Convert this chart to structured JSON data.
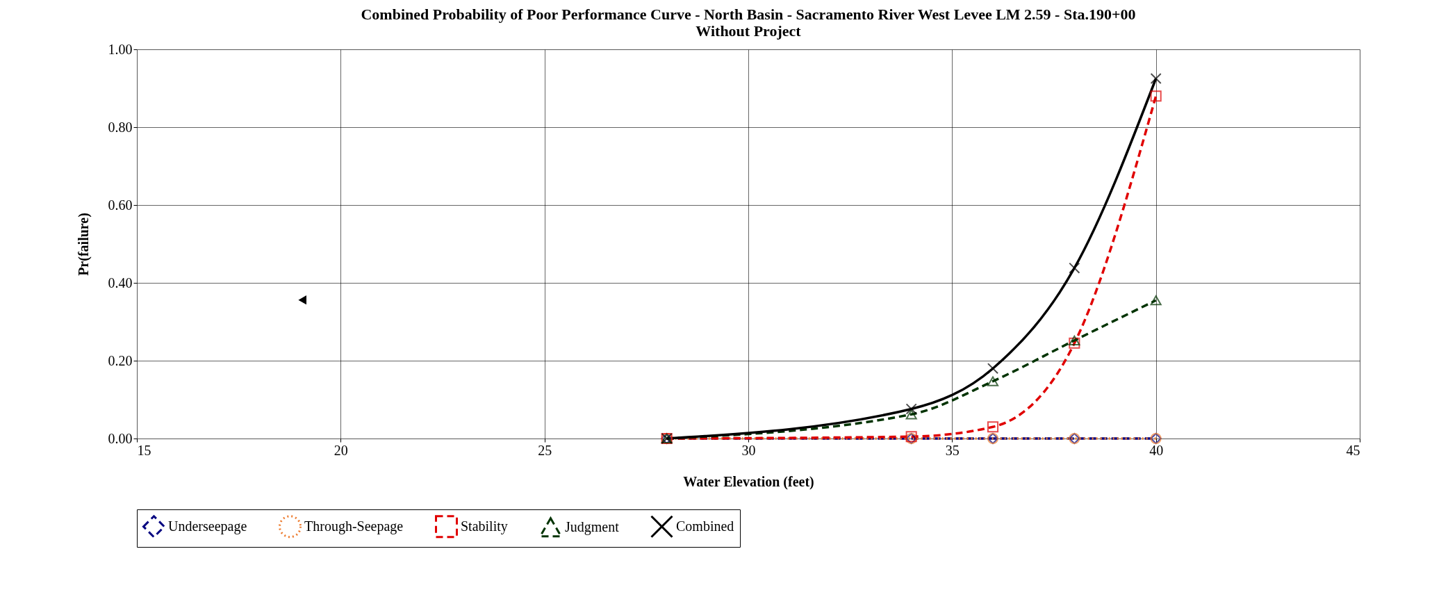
{
  "chart_data": {
    "type": "line",
    "title": "Combined Probability of Poor Performance Curve - North Basin - Sacramento River West Levee LM 2.59 - Sta.190+00",
    "subtitle": "Without Project",
    "xlabel": "Water Elevation (feet)",
    "ylabel": "Pr(failure)",
    "xlim": [
      15,
      45
    ],
    "xticks": [
      15,
      20,
      25,
      30,
      35,
      40,
      45
    ],
    "ylim": [
      0,
      1
    ],
    "yticks": [
      {
        "value": 0,
        "label": "0.00"
      },
      {
        "value": 0.2,
        "label": "0.20"
      },
      {
        "value": 0.4,
        "label": "0.40"
      },
      {
        "value": 0.6,
        "label": "0.60"
      },
      {
        "value": 0.8,
        "label": "0.80"
      },
      {
        "value": 1,
        "label": "1.00"
      }
    ],
    "grid": true,
    "legend": "bottom",
    "series": [
      {
        "name": "Underseepage",
        "color": "#000080",
        "marker": "diamond",
        "line_style": "dashed",
        "x": [
          28,
          34,
          36,
          38,
          40
        ],
        "values": [
          0,
          0,
          0,
          0,
          0
        ]
      },
      {
        "name": "Through-Seepage",
        "color": "#ed7d31",
        "marker": "circle",
        "line_style": "dotted",
        "x": [
          28,
          34,
          36,
          38,
          40
        ],
        "values": [
          0,
          0,
          0,
          0,
          0
        ]
      },
      {
        "name": "Stability",
        "color": "#e00000",
        "marker": "square",
        "line_style": "dashed",
        "x": [
          28,
          34,
          36,
          38,
          40
        ],
        "values": [
          0,
          0.005,
          0.03,
          0.245,
          0.88
        ]
      },
      {
        "name": "Judgment",
        "color": "#003300",
        "marker": "triangle",
        "line_style": "dashed",
        "x": [
          28,
          34,
          36,
          38,
          40
        ],
        "values": [
          0,
          0.062,
          0.147,
          0.252,
          0.355
        ]
      },
      {
        "name": "Combined",
        "color": "#000000",
        "marker": "cross",
        "line_style": "solid",
        "x": [
          28,
          34,
          36,
          38,
          40
        ],
        "values": [
          0,
          0.076,
          0.18,
          0.438,
          0.925
        ]
      },
      {
        "type": "scatter",
        "color": "#000000",
        "marker": "triangle",
        "x": [
          19.06
        ],
        "values": [
          0.356
        ]
      }
    ]
  }
}
